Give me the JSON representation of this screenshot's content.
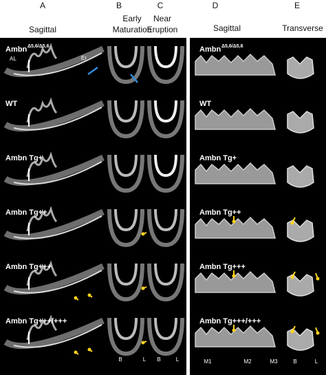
{
  "column_letters": [
    "A",
    "B",
    "C",
    "D",
    "E"
  ],
  "column_headers": [
    [
      "Sagittal"
    ],
    [
      "Early",
      "Maturation"
    ],
    [
      "Near",
      "Eruption"
    ],
    [
      "Sagittal"
    ],
    [
      "Transverse"
    ]
  ],
  "row_labels": [
    {
      "text": "Ambn",
      "sup": "Δ5,6/Δ5,6"
    },
    {
      "text": "WT"
    },
    {
      "text": "Ambn Tg+"
    },
    {
      "text": "Ambn Tg++"
    },
    {
      "text": "Ambn Tg+++"
    },
    {
      "text": "Ambn Tg+++/+++"
    }
  ],
  "panel_a_labels": [
    "AL",
    "Er"
  ],
  "panel_bc_bottom_labels": [
    "B",
    "L",
    "B",
    "L"
  ],
  "panel_de_bottom_labels": [
    "M1",
    "M2",
    "M3",
    "B",
    "L"
  ]
}
